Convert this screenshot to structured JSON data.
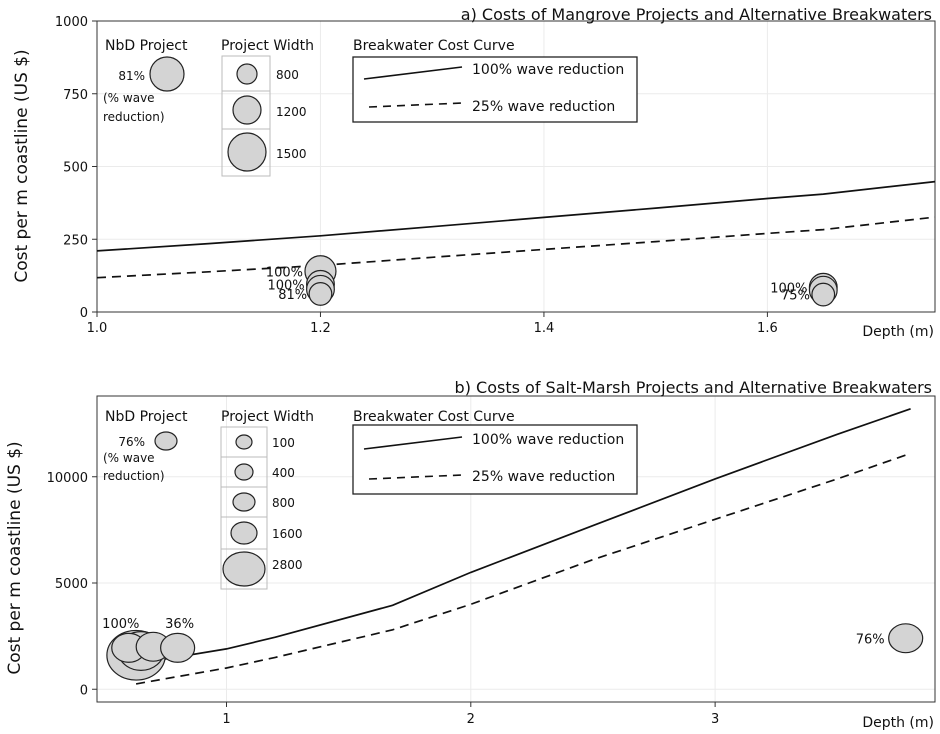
{
  "chart_data": [
    {
      "type": "scatter",
      "title": "a) Costs of Mangrove Projects and Alternative Breakwaters",
      "xlabel": "Depth (m)",
      "ylabel": "Cost per m coastline (US $)",
      "xlim": [
        1.0,
        1.75
      ],
      "ylim": [
        0,
        1000
      ],
      "xticks": [
        "1.0",
        "1.2",
        "1.4",
        "1.6"
      ],
      "yticks": [
        "0",
        "250",
        "500",
        "750",
        "1000"
      ],
      "grid": true,
      "curves": [
        {
          "name": "100% wave reduction",
          "style": "solid",
          "x": [
            1.0,
            1.1,
            1.2,
            1.3,
            1.4,
            1.5,
            1.6,
            1.65,
            1.75
          ],
          "y": [
            210,
            235,
            262,
            293,
            325,
            357,
            390,
            405,
            448
          ]
        },
        {
          "name": "25% wave reduction",
          "style": "dashed",
          "x": [
            1.0,
            1.1,
            1.2,
            1.3,
            1.4,
            1.5,
            1.6,
            1.65,
            1.75
          ],
          "y": [
            118,
            138,
            160,
            188,
            215,
            242,
            270,
            283,
            326
          ]
        }
      ],
      "projects": [
        {
          "x": 1.2,
          "y": 140,
          "width": 1500,
          "label": "100%"
        },
        {
          "x": 1.2,
          "y": 95,
          "width": 1200,
          "label": "100%"
        },
        {
          "x": 1.2,
          "y": 78,
          "width": 1200,
          "label": ""
        },
        {
          "x": 1.2,
          "y": 62,
          "width": 800,
          "label": "81%"
        },
        {
          "x": 1.65,
          "y": 85,
          "width": 1200,
          "label": "100%"
        },
        {
          "x": 1.65,
          "y": 75,
          "width": 1200,
          "label": ""
        },
        {
          "x": 1.65,
          "y": 60,
          "width": 800,
          "label": "75%"
        }
      ],
      "legend": {
        "nbd_title": "NbD Project",
        "nbd_pct": "81%",
        "nbd_note_1": "(% wave",
        "nbd_note_2": "reduction)",
        "width_title": "Project Width",
        "widths": [
          "800",
          "1200",
          "1500"
        ],
        "curve_title": "Breakwater Cost Curve",
        "curve_solid": "100% wave reduction",
        "curve_dashed": "25% wave reduction",
        "placement": "top-left"
      }
    },
    {
      "type": "scatter",
      "title": "b) Costs of Salt-Marsh Projects and Alternative Breakwaters",
      "xlabel": "Depth (m)",
      "ylabel": "Cost per m coastline (US $)",
      "xlim": [
        0.47,
        3.9
      ],
      "ylim": [
        -600,
        13800
      ],
      "xticks": [
        "1",
        "2",
        "3"
      ],
      "yticks": [
        "0",
        "5000",
        "10000"
      ],
      "grid": true,
      "curves": [
        {
          "name": "100% wave reduction",
          "style": "solid",
          "x": [
            0.63,
            1.0,
            1.2,
            1.68,
            2.0,
            2.5,
            3.0,
            3.5,
            3.8
          ],
          "y": [
            1200,
            1900,
            2450,
            3950,
            5500,
            7700,
            9900,
            12000,
            13200
          ]
        },
        {
          "name": "25% wave reduction",
          "style": "dashed",
          "x": [
            0.63,
            1.0,
            1.2,
            1.68,
            2.0,
            2.5,
            3.0,
            3.5,
            3.8
          ],
          "y": [
            250,
            1000,
            1500,
            2800,
            4000,
            6100,
            8000,
            9900,
            11100
          ]
        }
      ],
      "projects": [
        {
          "x": 0.63,
          "y": 1600,
          "width": 2800,
          "label": ""
        },
        {
          "x": 0.65,
          "y": 1800,
          "width": 1600,
          "label": ""
        },
        {
          "x": 0.6,
          "y": 1950,
          "width": 800,
          "label": "100%"
        },
        {
          "x": 0.7,
          "y": 2000,
          "width": 800,
          "label": ""
        },
        {
          "x": 0.8,
          "y": 1950,
          "width": 800,
          "label": "36%"
        },
        {
          "x": 3.78,
          "y": 2400,
          "width": 800,
          "label": "76%"
        }
      ],
      "legend": {
        "nbd_title": "NbD Project",
        "nbd_pct": "76%",
        "nbd_note_1": "(% wave",
        "nbd_note_2": "reduction)",
        "width_title": "Project Width",
        "widths": [
          "100",
          "400",
          "800",
          "1600",
          "2800"
        ],
        "curve_title": "Breakwater Cost Curve",
        "curve_solid": "100% wave reduction",
        "curve_dashed": "25% wave reduction",
        "placement": "top-left"
      }
    }
  ]
}
